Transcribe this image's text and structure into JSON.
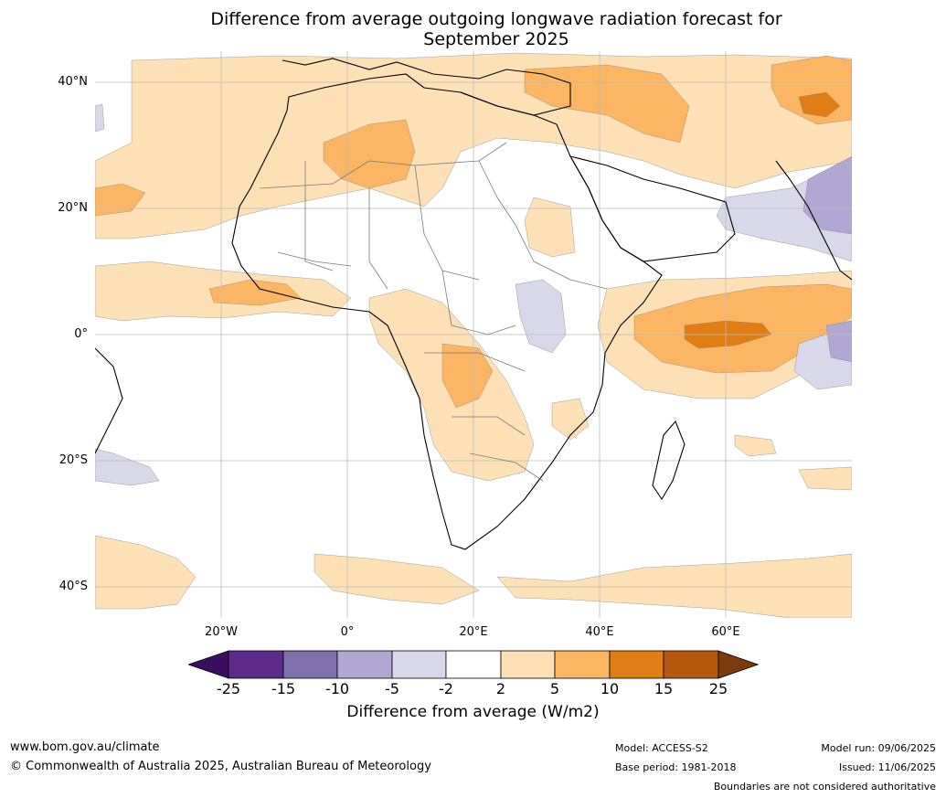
{
  "title": {
    "line1": "Difference from average outgoing longwave radiation forecast for",
    "line2": "September 2025"
  },
  "map": {
    "latitude_labels": [
      "40°N",
      "20°N",
      "0°",
      "20°S",
      "40°S"
    ],
    "longitude_labels": [
      "20°W",
      "0°",
      "20°E",
      "40°E",
      "60°E"
    ],
    "region": "Africa",
    "grid": true
  },
  "legend": {
    "ticks": [
      "-25",
      "-15",
      "-10",
      "-5",
      "-2",
      "2",
      "5",
      "10",
      "15",
      "25"
    ],
    "colors": [
      "#3b0f5f",
      "#5b2a8a",
      "#8070ad",
      "#b0a8d2",
      "#d8d8ea",
      "#ffffff",
      "#fde0b5",
      "#fbb563",
      "#e07d14",
      "#b3580d",
      "#7c3b0a"
    ],
    "label": "Difference from average (W/m2)"
  },
  "footer": {
    "website": "www.bom.gov.au/climate",
    "copyright": "© Commonwealth of Australia 2025, Australian Bureau of Meteorology",
    "model": "Model: ACCESS-S2",
    "base_period": "Base period: 1981-2018",
    "model_run": "Model run: 09/06/2025",
    "issued": "Issued: 11/06/2025",
    "disclaimer": "Boundaries are not considered authoritative"
  }
}
